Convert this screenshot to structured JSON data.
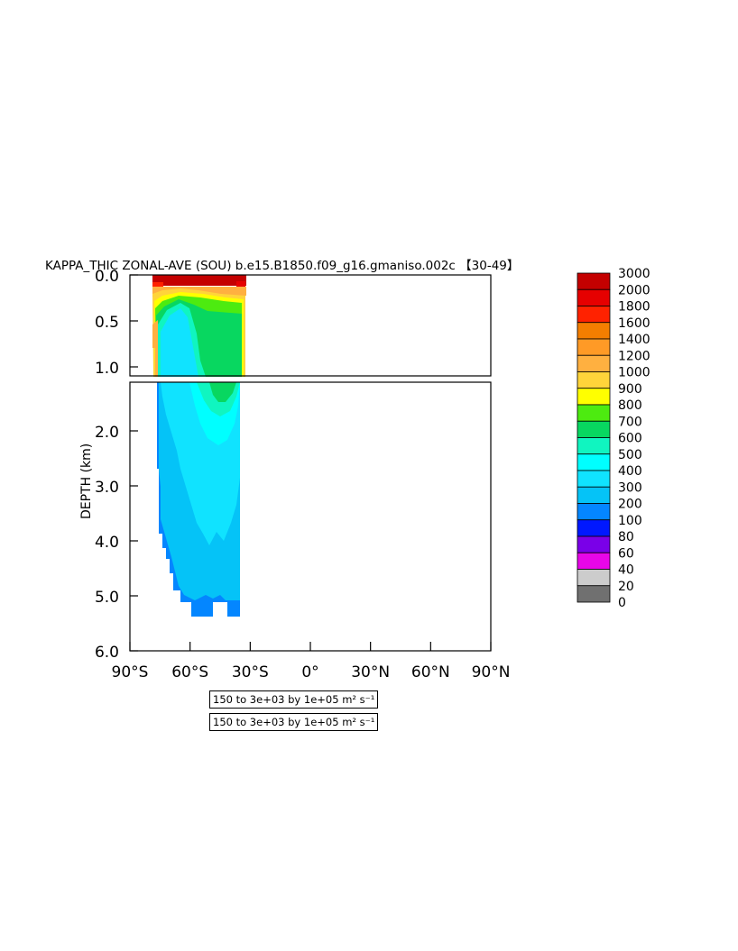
{
  "chart_data": {
    "type": "heatmap",
    "title": "KAPPA_THIC ZONAL-AVE (SOU) b.e15.B1850.f09_g16.gmaniso.002c 【30-49】",
    "ylabel": "DEPTH (km)",
    "upper_panel": {
      "ylim": [
        0.0,
        1.0
      ],
      "yticks": [
        "0.0",
        "0.5",
        "1.0"
      ]
    },
    "lower_panel": {
      "ylim": [
        1.0,
        6.0
      ],
      "yticks": [
        "2.0",
        "3.0",
        "4.0",
        "5.0",
        "6.0"
      ]
    },
    "xticks": [
      "90°S",
      "60°S",
      "30°S",
      "0°",
      "30°N",
      "60°N",
      "90°N"
    ],
    "xlim_deg": [
      -90,
      90
    ],
    "data_extent_deg": [
      -78,
      -33
    ],
    "colorbar": {
      "labels": [
        "3000",
        "2000",
        "1800",
        "1600",
        "1400",
        "1200",
        "1000",
        "900",
        "800",
        "700",
        "600",
        "500",
        "400",
        "300",
        "200",
        "100",
        "80",
        "60",
        "40",
        "20",
        "0"
      ],
      "colors": [
        "#C40000",
        "#E60000",
        "#FF2200",
        "#F47E00",
        "#FF9A26",
        "#FFB040",
        "#FFD43A",
        "#FFFF00",
        "#4DEB10",
        "#08D760",
        "#10F5C0",
        "#00FFFF",
        "#10E3FF",
        "#05C3F7",
        "#0486FF",
        "#0018FF",
        "#7A00E8",
        "#E806E8",
        "#CCCCCC",
        "#707070"
      ]
    },
    "contour_info": [
      "150 to 3e+03 by 1e+05 m² s⁻¹",
      "150 to 3e+03 by 1e+05 m² s⁻¹"
    ]
  }
}
